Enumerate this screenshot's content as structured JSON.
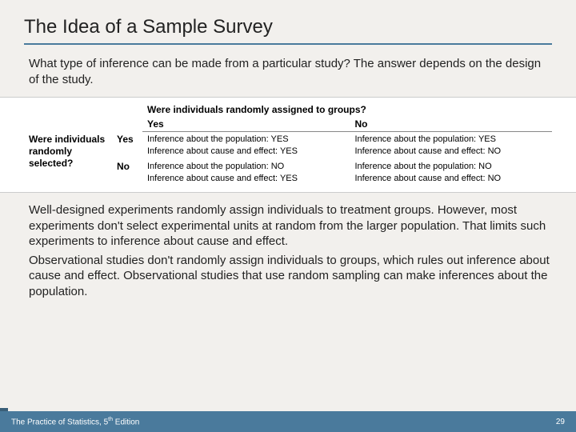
{
  "title": "The Idea of a Sample Survey",
  "intro": "What type of inference can be made from a particular study? The answer depends on the design of the study.",
  "table": {
    "top_question": "Were individuals randomly assigned to groups?",
    "side_question": "Were individuals randomly selected?",
    "col_yes": "Yes",
    "col_no": "No",
    "row_yes": "Yes",
    "row_no": "No",
    "cells": {
      "yy_pop": "Inference about the population: YES",
      "yy_ce": "Inference about cause and effect: YES",
      "yn_pop": "Inference about the population: YES",
      "yn_ce": "Inference about cause and effect: NO",
      "ny_pop": "Inference about the population: NO",
      "ny_ce": "Inference about cause and effect: YES",
      "nn_pop": "Inference about the population: NO",
      "nn_ce": "Inference about cause and effect: NO"
    }
  },
  "para1": "Well-designed experiments randomly assign individuals to treatment groups.  However, most experiments don't select experimental units at random from the larger population. That limits such experiments to inference about cause and effect.",
  "para2": "Observational studies don't randomly assign individuals to groups, which rules out inference about cause and effect. Observational studies that use random sampling can make inferences about the population.",
  "footer": {
    "left_pre": "The Practice of Statistics, 5",
    "left_sup": "th",
    "left_post": " Edition",
    "page": "29"
  },
  "colors": {
    "accent": "#4a7a9c",
    "bg": "#f2f0ed"
  }
}
